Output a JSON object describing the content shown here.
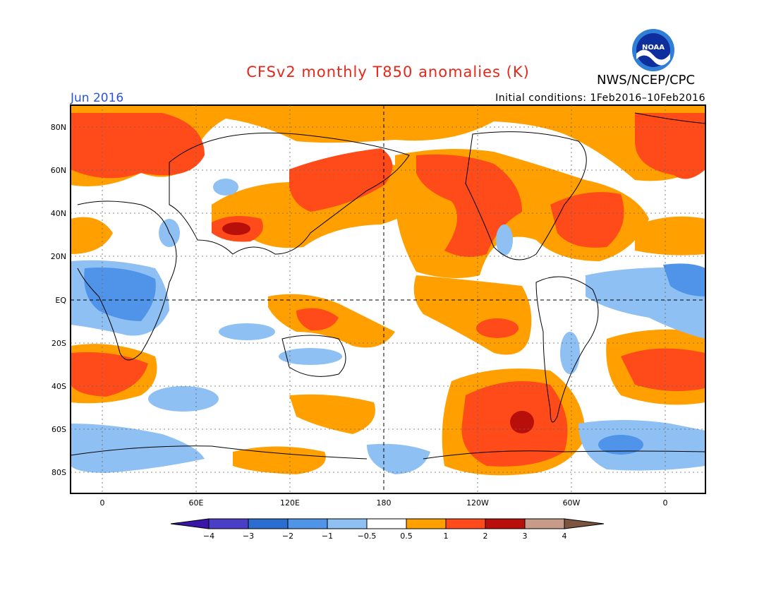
{
  "header": {
    "title": "CFSv2 monthly T850 anomalies (K)",
    "org": "NWS/NCEP/CPC",
    "month": "Jun 2016",
    "initial_conditions": "Initial conditions: 1Feb2016–10Feb2016",
    "logo_text": "NOAA"
  },
  "axes": {
    "y_ticks": [
      "80N",
      "60N",
      "40N",
      "20N",
      "EQ",
      "20S",
      "40S",
      "60S",
      "80S"
    ],
    "x_ticks": [
      "0",
      "60E",
      "120E",
      "180",
      "120W",
      "60W",
      "0"
    ]
  },
  "colorbar": {
    "labels": [
      "−4",
      "−3",
      "−2",
      "−1",
      "−0.5",
      "0.5",
      "1",
      "2",
      "3",
      "4"
    ],
    "colors": [
      "#3a16a8",
      "#4b3ec6",
      "#2b6dd0",
      "#4f94e8",
      "#8ec0f3",
      "#ffffff",
      "#ff9f00",
      "#ff4a1a",
      "#b80f0a",
      "#c89a8a",
      "#7d5440"
    ]
  },
  "colors": {
    "orange": "#ff9f00",
    "red": "#ff4a1a",
    "darkred": "#b80f0a",
    "lightblue": "#8ec0f3",
    "blue": "#4f94e8",
    "darkblue": "#2b6dd0"
  }
}
